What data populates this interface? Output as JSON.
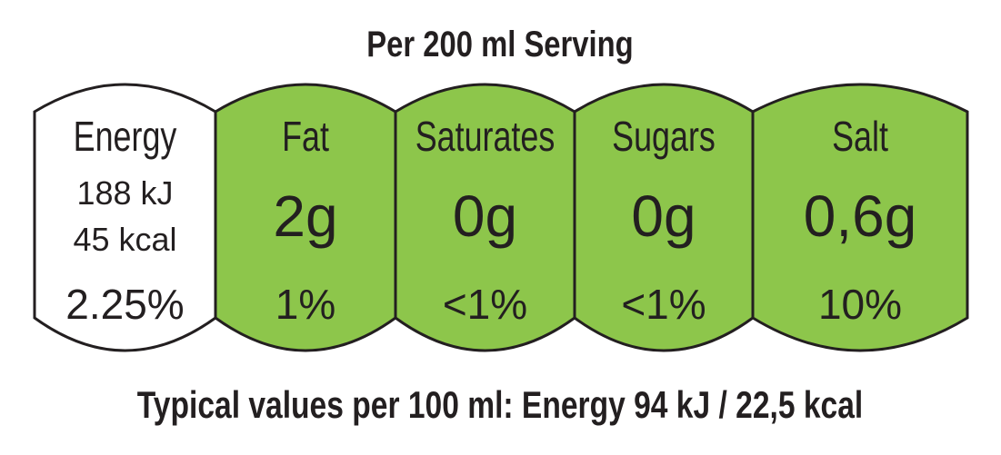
{
  "title": "Per 200 ml Serving",
  "colors": {
    "green": "#8dc64b",
    "white": "#ffffff",
    "outline": "#231f20"
  },
  "panels": [
    {
      "label": "Energy",
      "line1": "188 kJ",
      "line2": "45 kcal",
      "percent": "2.25%",
      "fill": "white"
    },
    {
      "label": "Fat",
      "value": "2g",
      "percent": "1%",
      "fill": "green"
    },
    {
      "label": "Saturates",
      "value": "0g",
      "percent": "<1%",
      "fill": "green"
    },
    {
      "label": "Sugars",
      "value": "0g",
      "percent": "<1%",
      "fill": "green"
    },
    {
      "label": "Salt",
      "value": "0,6g",
      "percent": "10%",
      "fill": "green"
    }
  ],
  "footer": "Typical values per 100 ml: Energy 94 kJ / 22,5 kcal"
}
